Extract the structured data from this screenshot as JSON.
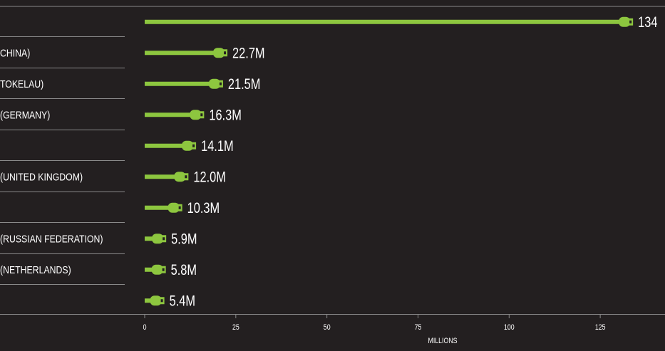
{
  "chart_data": {
    "type": "bar",
    "orientation": "horizontal",
    "categories": [
      "",
      "CHINA)",
      "TOKELAU)",
      "(GERMANY)",
      "",
      "(UNITED KINGDOM)",
      "",
      "(RUSSIAN FEDERATION)",
      "(NETHERLANDS)",
      ""
    ],
    "values": [
      134,
      22.7,
      21.5,
      16.3,
      14.1,
      12.0,
      10.3,
      5.9,
      5.8,
      5.4
    ],
    "value_labels": [
      "134",
      "22.7M",
      "21.5M",
      "16.3M",
      "14.1M",
      "12.0M",
      "10.3M",
      "5.9M",
      "5.8M",
      "5.4M"
    ],
    "x_ticks": [
      0,
      25,
      50,
      75,
      100,
      125
    ],
    "x_tick_labels": [
      "0",
      "25",
      "50",
      "75",
      "100",
      "125"
    ],
    "xlim": [
      0,
      140
    ],
    "xlabel": "MILLIONS",
    "ylabel": "",
    "title": "",
    "legend": "none",
    "grid": false,
    "colors": {
      "background": "#231f20",
      "bar": "#8dc63f",
      "text": "#ffffff",
      "divider": "#8a8a8a",
      "plug_notch": "#231f20"
    },
    "bar_style": "usb-cable-plug"
  }
}
